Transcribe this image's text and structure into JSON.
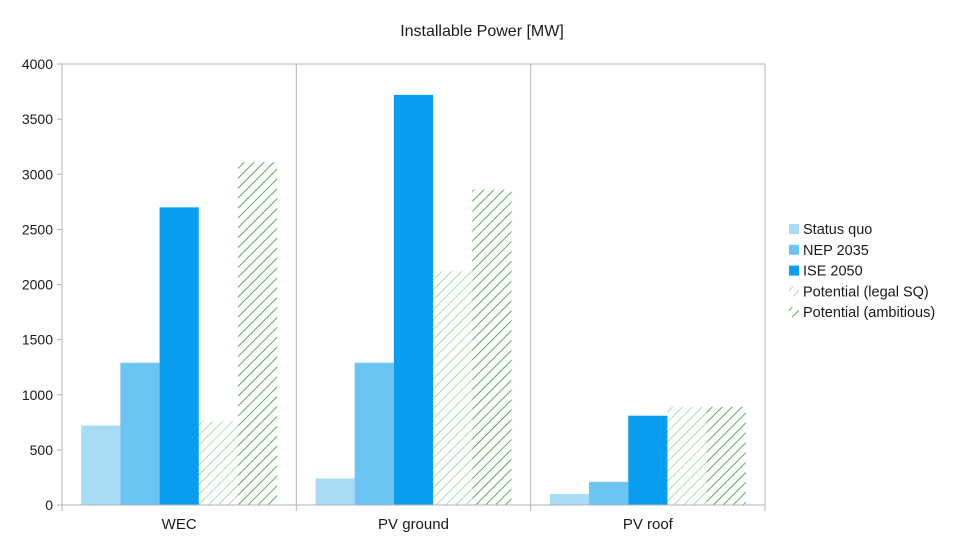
{
  "chart_data": {
    "type": "bar",
    "title": "Installable Power [MW]",
    "xlabel": "",
    "ylabel": "",
    "categories": [
      "WEC",
      "PV ground",
      "PV roof"
    ],
    "ylim": [
      0,
      4000
    ],
    "yticks": [
      0,
      500,
      1000,
      1500,
      2000,
      2500,
      3000,
      3500,
      4000
    ],
    "grid": "vertical category separators",
    "legend_position": "right",
    "series": [
      {
        "name": "Status quo",
        "values": [
          720,
          240,
          100
        ],
        "color": "#a8dcf6",
        "fill": "solid"
      },
      {
        "name": "NEP 2035",
        "values": [
          1290,
          1290,
          210
        ],
        "color": "#6cc4f5",
        "fill": "solid"
      },
      {
        "name": "ISE 2050",
        "values": [
          2700,
          3720,
          810
        ],
        "color": "#0a9ef0",
        "fill": "solid"
      },
      {
        "name": "Potential (legal SQ)",
        "values": [
          760,
          2120,
          890
        ],
        "color": "#7ed07e",
        "fill": "hatch-light"
      },
      {
        "name": "Potential (ambitious)",
        "values": [
          3110,
          2860,
          890
        ],
        "color": "#2e9a2e",
        "fill": "hatch-dark"
      }
    ]
  }
}
